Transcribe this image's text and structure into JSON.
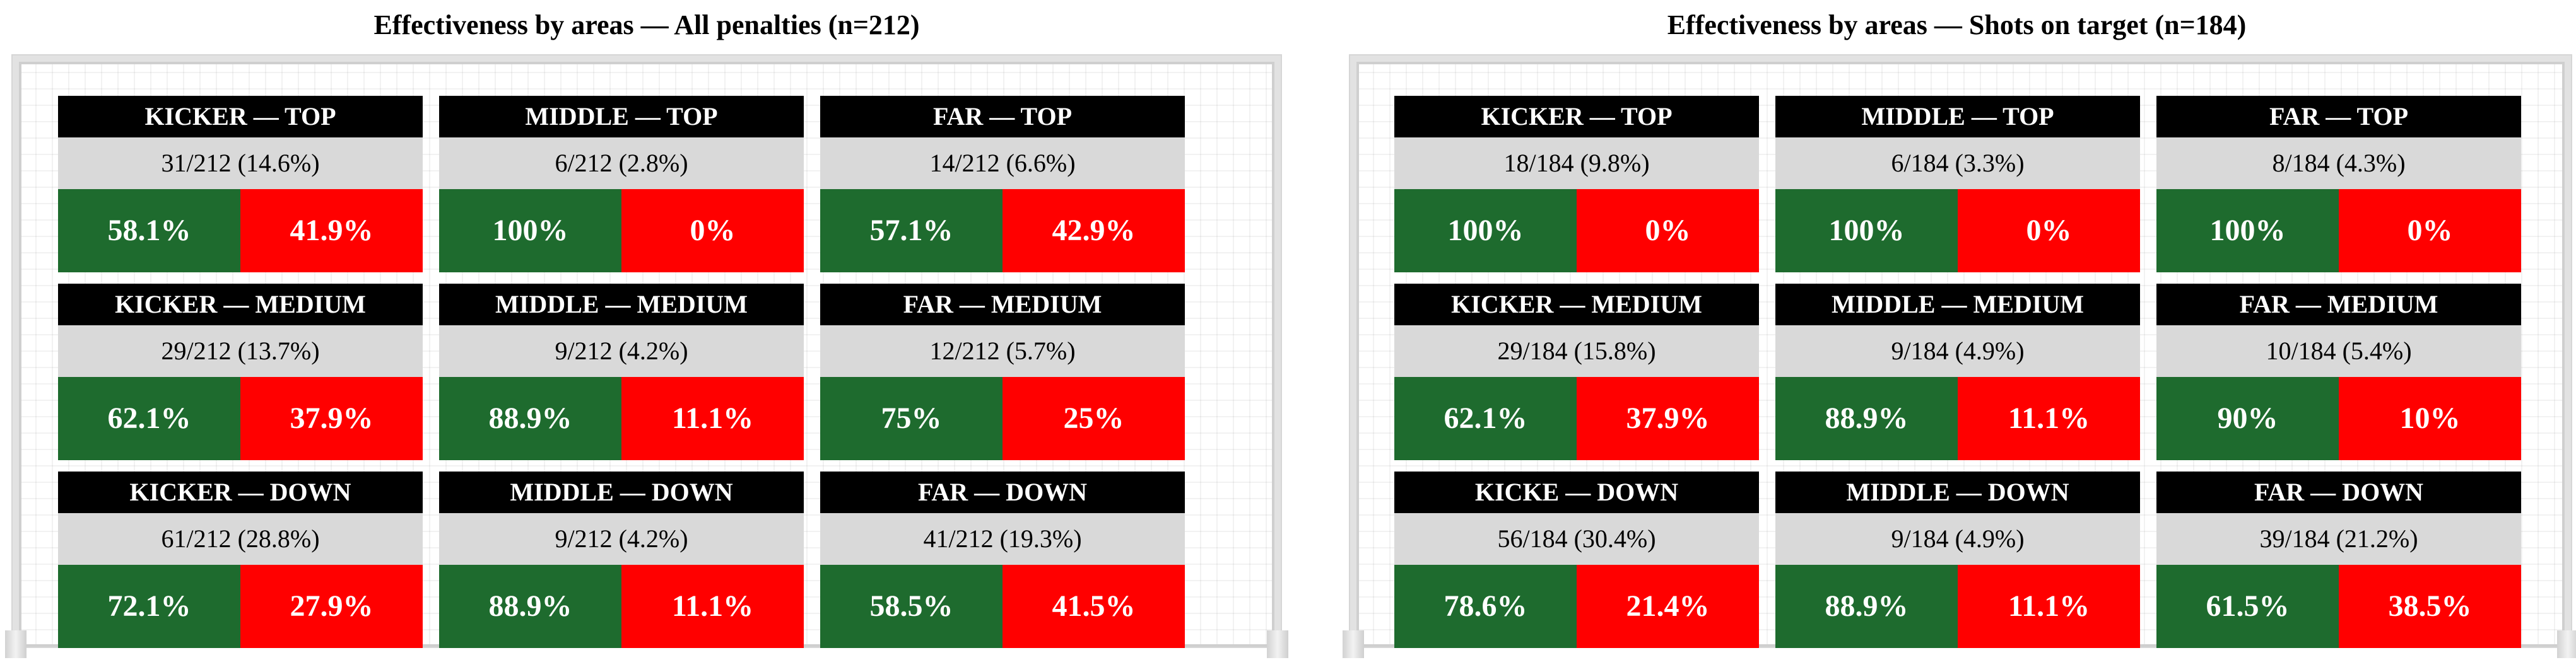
{
  "chart_data": [
    {
      "type": "table",
      "title": "Effectiveness by areas — All penalties (n=212)",
      "cells": [
        {
          "area": "KICKER — TOP",
          "count": "31/212 (14.6%)",
          "scored": "58.1%",
          "missed": "41.9%"
        },
        {
          "area": "MIDDLE — TOP",
          "count": "6/212 (2.8%)",
          "scored": "100%",
          "missed": "0%"
        },
        {
          "area": "FAR — TOP",
          "count": "14/212 (6.6%)",
          "scored": "57.1%",
          "missed": "42.9%"
        },
        {
          "area": "KICKER — MEDIUM",
          "count": "29/212 (13.7%)",
          "scored": "62.1%",
          "missed": "37.9%"
        },
        {
          "area": "MIDDLE — MEDIUM",
          "count": "9/212 (4.2%)",
          "scored": "88.9%",
          "missed": "11.1%"
        },
        {
          "area": "FAR — MEDIUM",
          "count": "12/212 (5.7%)",
          "scored": "75%",
          "missed": "25%"
        },
        {
          "area": "KICKER — DOWN",
          "count": "61/212 (28.8%)",
          "scored": "72.1%",
          "missed": "27.9%"
        },
        {
          "area": "MIDDLE — DOWN",
          "count": "9/212 (4.2%)",
          "scored": "88.9%",
          "missed": "11.1%"
        },
        {
          "area": "FAR — DOWN",
          "count": "41/212 (19.3%)",
          "scored": "58.5%",
          "missed": "41.5%"
        }
      ]
    },
    {
      "type": "table",
      "title": "Effectiveness by areas — Shots on target (n=184)",
      "cells": [
        {
          "area": "KICKER — TOP",
          "count": "18/184 (9.8%)",
          "scored": "100%",
          "missed": "0%"
        },
        {
          "area": "MIDDLE — TOP",
          "count": "6/184 (3.3%)",
          "scored": "100%",
          "missed": "0%"
        },
        {
          "area": "FAR — TOP",
          "count": "8/184 (4.3%)",
          "scored": "100%",
          "missed": "0%"
        },
        {
          "area": "KICKER — MEDIUM",
          "count": "29/184 (15.8%)",
          "scored": "62.1%",
          "missed": "37.9%"
        },
        {
          "area": "MIDDLE — MEDIUM",
          "count": "9/184 (4.9%)",
          "scored": "88.9%",
          "missed": "11.1%"
        },
        {
          "area": "FAR — MEDIUM",
          "count": "10/184 (5.4%)",
          "scored": "90%",
          "missed": "10%"
        },
        {
          "area": "KICKE — DOWN",
          "count": "56/184 (30.4%)",
          "scored": "78.6%",
          "missed": "21.4%"
        },
        {
          "area": "MIDDLE — DOWN",
          "count": "9/184 (4.9%)",
          "scored": "88.9%",
          "missed": "11.1%"
        },
        {
          "area": "FAR — DOWN",
          "count": "39/184 (21.2%)",
          "scored": "61.5%",
          "missed": "38.5%"
        }
      ]
    }
  ],
  "colors": {
    "scored": "#1e6b2e",
    "missed": "#ff0000",
    "header": "#000000",
    "count_row": "#d9d9d9"
  }
}
